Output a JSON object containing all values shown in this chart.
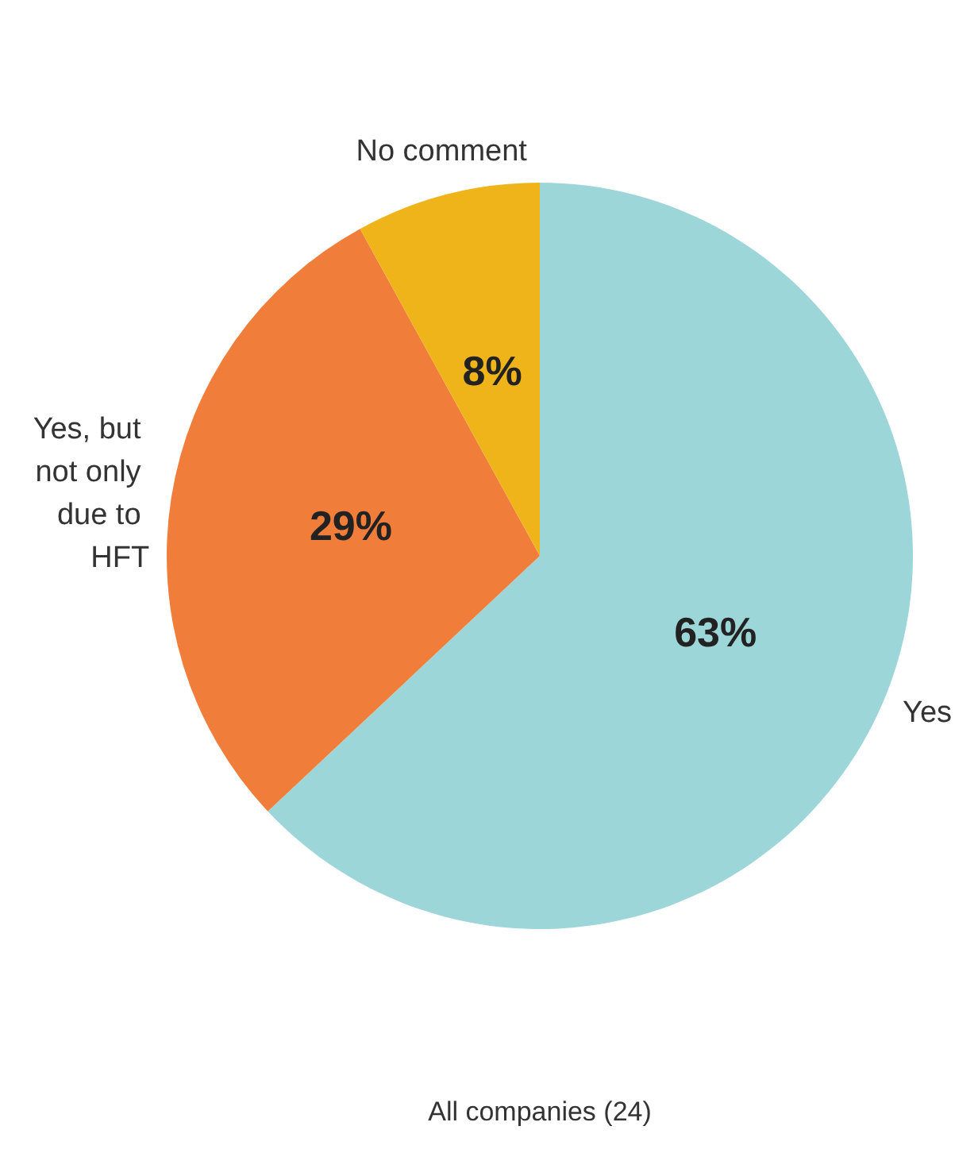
{
  "chart_data": {
    "type": "pie",
    "categories": [
      "Yes",
      "Yes, but not only due to HFT",
      "No comment"
    ],
    "values": [
      63,
      29,
      8
    ],
    "colors": [
      "#9dd6d8",
      "#f07d3a",
      "#efb41a"
    ],
    "value_labels": [
      "63%",
      "29%",
      "8%"
    ],
    "annotations": [
      "All companies (24)"
    ],
    "legend": false
  }
}
